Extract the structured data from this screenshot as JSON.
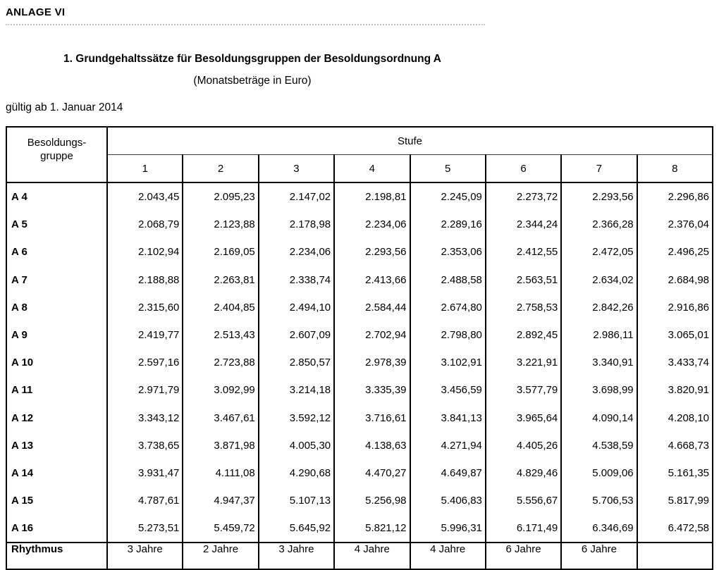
{
  "header": {
    "anlage": "ANLAGE VI",
    "title": "1. Grundgehaltssätze für Besoldungsgruppen der Besoldungsordnung A",
    "subtitle": "(Monatsbeträge in Euro)",
    "valid_from": "gültig ab 1. Januar 2014"
  },
  "table": {
    "group_header_line1": "Besoldungs-",
    "group_header_line2": "gruppe",
    "stufe_label": "Stufe",
    "stufe_columns": [
      "1",
      "2",
      "3",
      "4",
      "5",
      "6",
      "7",
      "8"
    ],
    "rows": [
      {
        "group": "A 4",
        "values": [
          "2.043,45",
          "2.095,23",
          "2.147,02",
          "2.198,81",
          "2.245,09",
          "2.273,72",
          "2.293,56",
          "2.296,86"
        ]
      },
      {
        "group": "A 5",
        "values": [
          "2.068,79",
          "2.123,88",
          "2.178,98",
          "2.234,06",
          "2.289,16",
          "2.344,24",
          "2.366,28",
          "2.376,04"
        ]
      },
      {
        "group": "A 6",
        "values": [
          "2.102,94",
          "2.169,05",
          "2.234,06",
          "2.293,56",
          "2.353,06",
          "2.412,55",
          "2.472,05",
          "2.496,25"
        ]
      },
      {
        "group": "A 7",
        "values": [
          "2.188,88",
          "2.263,81",
          "2.338,74",
          "2.413,66",
          "2.488,58",
          "2.563,51",
          "2.634,02",
          "2.684,98"
        ]
      },
      {
        "group": "A 8",
        "values": [
          "2.315,60",
          "2.404,85",
          "2.494,10",
          "2.584,44",
          "2.674,80",
          "2.758,53",
          "2.842,26",
          "2.916,86"
        ]
      },
      {
        "group": "A 9",
        "values": [
          "2.419,77",
          "2.513,43",
          "2.607,09",
          "2.702,94",
          "2.798,80",
          "2.892,45",
          "2.986,11",
          "3.065,01"
        ]
      },
      {
        "group": "A 10",
        "values": [
          "2.597,16",
          "2.723,88",
          "2.850,57",
          "2.978,39",
          "3.102,91",
          "3.221,91",
          "3.340,91",
          "3.433,74"
        ]
      },
      {
        "group": "A 11",
        "values": [
          "2.971,79",
          "3.092,99",
          "3.214,18",
          "3.335,39",
          "3.456,59",
          "3.577,79",
          "3.698,99",
          "3.820,91"
        ]
      },
      {
        "group": "A 12",
        "values": [
          "3.343,12",
          "3.467,61",
          "3.592,12",
          "3.716,61",
          "3.841,13",
          "3.965,64",
          "4.090,14",
          "4.208,10"
        ]
      },
      {
        "group": "A 13",
        "values": [
          "3.738,65",
          "3.871,98",
          "4.005,30",
          "4.138,63",
          "4.271,94",
          "4.405,26",
          "4.538,59",
          "4.668,73"
        ]
      },
      {
        "group": "A 14",
        "values": [
          "3.931,47",
          "4.111,08",
          "4.290,68",
          "4.470,27",
          "4.649,87",
          "4.829,46",
          "5.009,06",
          "5.161,35"
        ]
      },
      {
        "group": "A 15",
        "values": [
          "4.787,61",
          "4.947,37",
          "5.107,13",
          "5.256,98",
          "5.406,83",
          "5.556,67",
          "5.706,53",
          "5.817,99"
        ]
      },
      {
        "group": "A 16",
        "values": [
          "5.273,51",
          "5.459,72",
          "5.645,92",
          "5.821,12",
          "5.996,31",
          "6.171,49",
          "6.346,69",
          "6.472,58"
        ]
      }
    ],
    "rhythmus": {
      "label": "Rhythmus",
      "values": [
        "3 Jahre",
        "2 Jahre",
        "3 Jahre",
        "4 Jahre",
        "4 Jahre",
        "6 Jahre",
        "6 Jahre",
        ""
      ]
    }
  },
  "colors": {
    "background": "#ffffff",
    "text": "#000000",
    "table_border": "#000000",
    "divider_dots": "#c6c6c6"
  }
}
